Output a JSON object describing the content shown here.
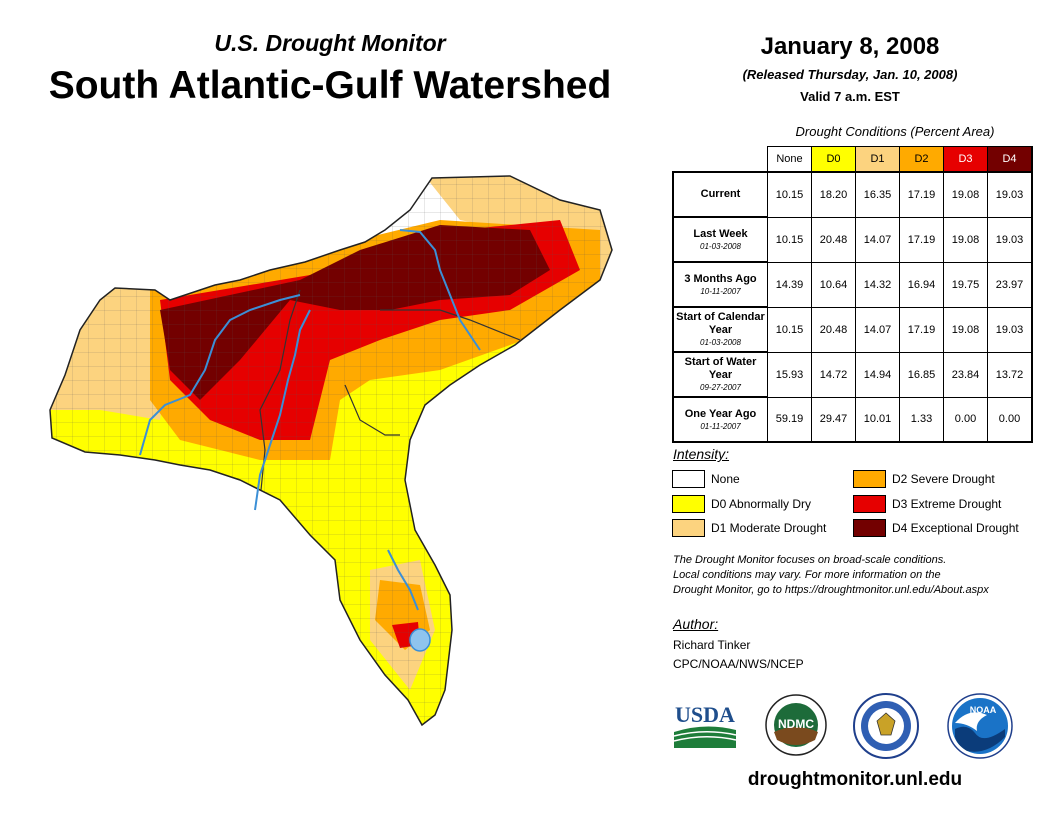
{
  "header": {
    "subtitle": "U.S. Drought Monitor",
    "title": "South Atlantic-Gulf Watershed",
    "date": "January 8, 2008",
    "released": "(Released Thursday, Jan. 10, 2008)",
    "valid": "Valid 7 a.m. EST"
  },
  "table": {
    "caption": "Drought Conditions (Percent Area)",
    "columns": [
      "None",
      "D0",
      "D1",
      "D2",
      "D3",
      "D4"
    ],
    "column_colors": [
      "#ffffff",
      "#ffff00",
      "#fcd37f",
      "#ffaa00",
      "#e60000",
      "#730000"
    ],
    "rows": [
      {
        "label": "Current",
        "date": "",
        "values": [
          "10.15",
          "18.20",
          "16.35",
          "17.19",
          "19.08",
          "19.03"
        ]
      },
      {
        "label": "Last Week",
        "date": "01-03-2008",
        "values": [
          "10.15",
          "20.48",
          "14.07",
          "17.19",
          "19.08",
          "19.03"
        ]
      },
      {
        "label": "3 Months Ago",
        "date": "10-11-2007",
        "values": [
          "14.39",
          "10.64",
          "14.32",
          "16.94",
          "19.75",
          "23.97"
        ]
      },
      {
        "label": "Start of Calendar Year",
        "date": "01-03-2008",
        "values": [
          "10.15",
          "20.48",
          "14.07",
          "17.19",
          "19.08",
          "19.03"
        ]
      },
      {
        "label": "Start of Water Year",
        "date": "09-27-2007",
        "values": [
          "15.93",
          "14.72",
          "14.94",
          "16.85",
          "23.84",
          "13.72"
        ]
      },
      {
        "label": "One Year Ago",
        "date": "01-11-2007",
        "values": [
          "59.19",
          "29.47",
          "10.01",
          "1.33",
          "0.00",
          "0.00"
        ]
      }
    ]
  },
  "legend": {
    "title": "Intensity:",
    "items": [
      {
        "label": "None",
        "color": "#ffffff"
      },
      {
        "label": "D0 Abnormally Dry",
        "color": "#ffff00"
      },
      {
        "label": "D1 Moderate Drought",
        "color": "#fcd37f"
      },
      {
        "label": "D2 Severe Drought",
        "color": "#ffaa00"
      },
      {
        "label": "D3 Extreme Drought",
        "color": "#e60000"
      },
      {
        "label": "D4 Exceptional Drought",
        "color": "#730000"
      }
    ]
  },
  "disclaimer": {
    "line1": "The Drought Monitor focuses on broad-scale conditions.",
    "line2": "Local conditions may vary. For more information on the",
    "line3": "Drought Monitor, go to https://droughtmonitor.unl.edu/About.aspx"
  },
  "author": {
    "heading": "Author:",
    "name": "Richard Tinker",
    "org": "CPC/NOAA/NWS/NCEP"
  },
  "logos": {
    "usda": "USDA",
    "ndmc": "NDMC",
    "noaa": "NOAA"
  },
  "website": "droughtmonitor.unl.edu"
}
